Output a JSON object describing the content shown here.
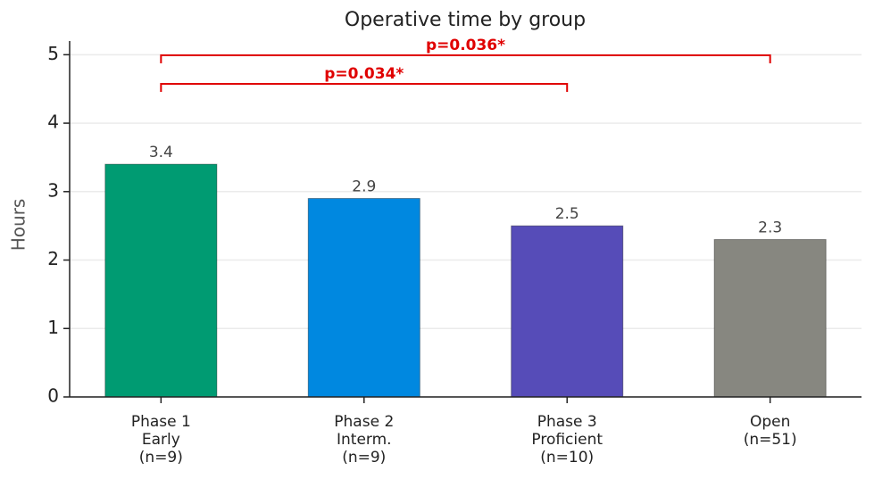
{
  "chart_data": {
    "type": "bar",
    "title": "Operative time by group",
    "y_label": "Hours",
    "categories": [
      [
        "Phase 1",
        "Early",
        "(n=9)"
      ],
      [
        "Phase 2",
        "Interm.",
        "(n=9)"
      ],
      [
        "Phase 3",
        "Proficient",
        "(n=10)"
      ],
      [
        "Open",
        "(n=51)"
      ]
    ],
    "values": [
      3.4,
      2.9,
      2.5,
      2.3
    ],
    "colors": [
      "#009b72",
      "#0088e0",
      "#564cb8",
      "#878780"
    ],
    "ylim": [
      0,
      5.2
    ],
    "yticks": [
      0,
      1,
      2,
      3,
      4,
      5
    ],
    "grid": true,
    "brackets": [
      {
        "groups": [
          0,
          2
        ],
        "label": "p=0.034*"
      },
      {
        "groups": [
          0,
          3
        ],
        "label": "p=0.036*"
      }
    ],
    "bracket_color": "#e00000"
  }
}
